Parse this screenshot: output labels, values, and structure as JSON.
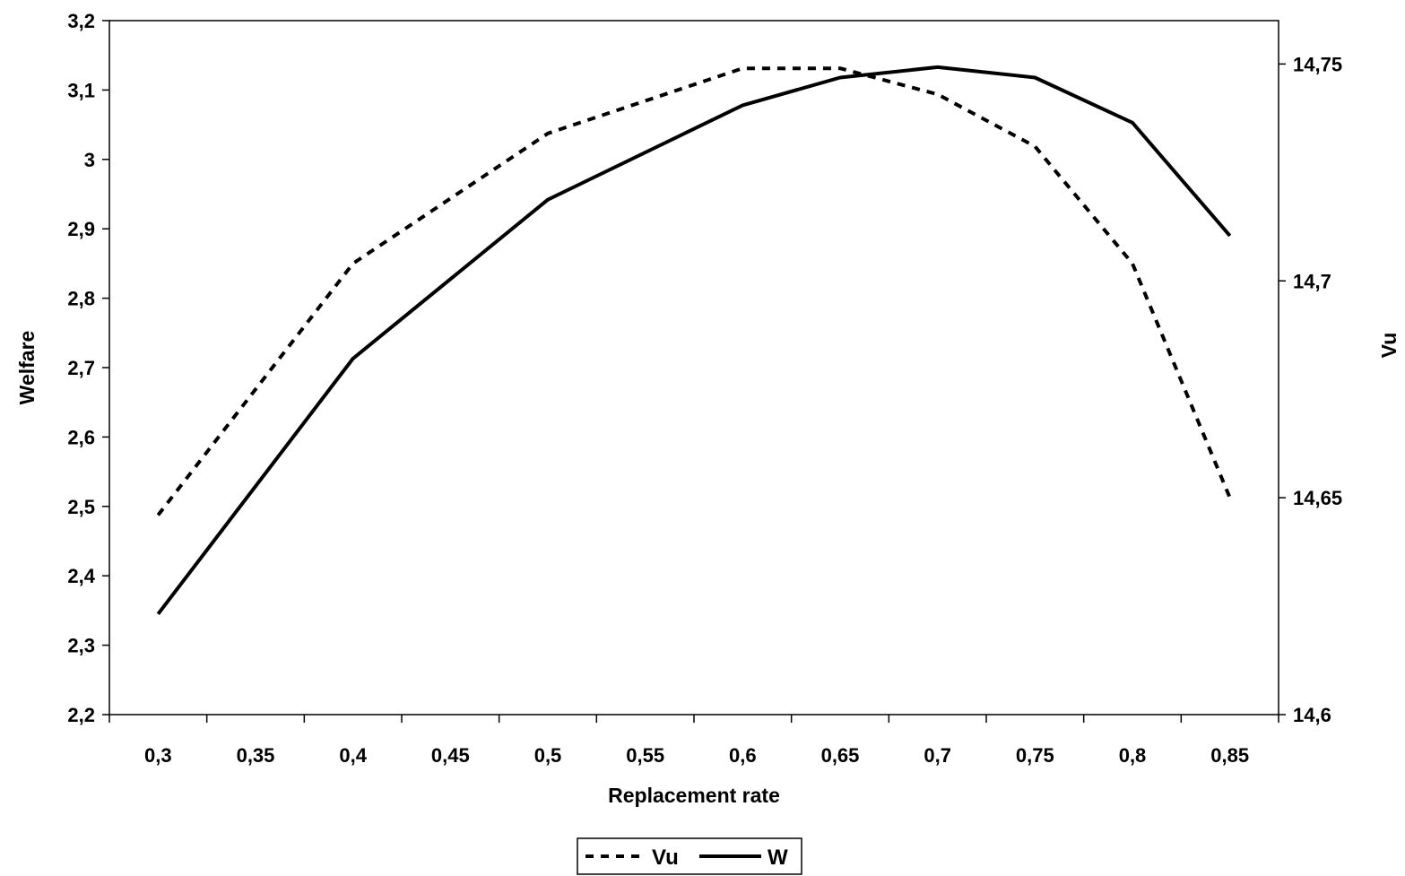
{
  "chart_data": {
    "type": "line",
    "x_tick_labels": [
      "0,3",
      "0,35",
      "0,4",
      "0,45",
      "0,5",
      "0,55",
      "0,6",
      "0,65",
      "0,7",
      "0,75",
      "0,8",
      "0,85"
    ],
    "y_left_tick_labels": [
      "2,2",
      "2,3",
      "2,4",
      "2,5",
      "2,6",
      "2,7",
      "2,8",
      "2,9",
      "3",
      "3,1",
      "3,2"
    ],
    "y_right_tick_labels": [
      "14,6",
      "14,65",
      "14,7",
      "14,75"
    ],
    "x_values": [
      0.3,
      0.4,
      0.5,
      0.6,
      0.65,
      0.7,
      0.75,
      0.8,
      0.85
    ],
    "xlim": [
      0.275,
      0.875
    ],
    "ylim_left": [
      2.2,
      3.2
    ],
    "ylim_right": [
      14.6,
      14.76
    ],
    "xlabel": "Replacement rate",
    "ylabel_left": "Welfare",
    "ylabel_right": "Vu",
    "grid": false,
    "legend_position": "bottom-center",
    "series": [
      {
        "name": "Vu",
        "axis": "right",
        "style": "dashed",
        "color": "#000000",
        "values": [
          14.646,
          14.704,
          14.734,
          14.749,
          14.749,
          14.743,
          14.731,
          14.704,
          14.65
        ]
      },
      {
        "name": "W",
        "axis": "left",
        "style": "solid",
        "color": "#000000",
        "values": [
          2.345,
          2.713,
          2.942,
          3.078,
          3.118,
          3.133,
          3.118,
          3.053,
          2.89
        ]
      }
    ]
  }
}
